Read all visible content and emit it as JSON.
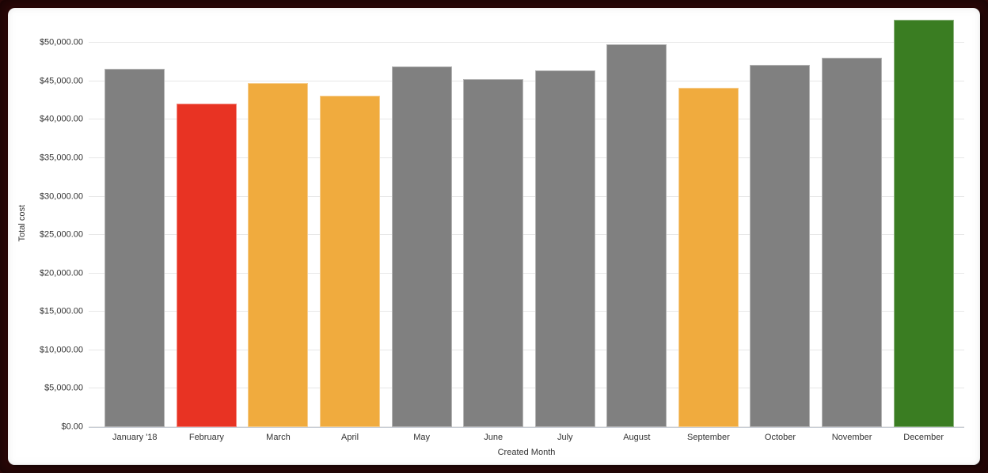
{
  "frame": {
    "border_color": "#2b0707",
    "panel_background": "#ffffff"
  },
  "chart_data": {
    "type": "bar",
    "title": "",
    "xlabel": "Created Month",
    "ylabel": "Total cost",
    "categories": [
      "January '18",
      "February",
      "March",
      "April",
      "May",
      "June",
      "July",
      "August",
      "September",
      "October",
      "November",
      "December"
    ],
    "values": [
      46600,
      42100,
      44800,
      43100,
      46900,
      45300,
      46400,
      49800,
      44100,
      47100,
      48100,
      53000
    ],
    "bar_colors": [
      "#808080",
      "#e83323",
      "#f0ab3e",
      "#f0ab3e",
      "#808080",
      "#808080",
      "#808080",
      "#808080",
      "#f0ab3e",
      "#808080",
      "#808080",
      "#3a7d22"
    ],
    "y_ticks": [
      0,
      5000,
      10000,
      15000,
      20000,
      25000,
      30000,
      35000,
      40000,
      45000,
      50000
    ],
    "y_tick_labels": [
      "$0.00",
      "$5,000.00",
      "$10,000.00",
      "$15,000.00",
      "$20,000.00",
      "$25,000.00",
      "$30,000.00",
      "$35,000.00",
      "$40,000.00",
      "$45,000.00",
      "$50,000.00"
    ],
    "ylim": [
      0,
      53000
    ],
    "grid": true,
    "legend": false,
    "colors": {
      "gridline": "#e7e7e7",
      "axis_line": "#c9ced6",
      "text": "#333333",
      "default_bar": "#808080",
      "highlight_red": "#e83323",
      "highlight_orange": "#f0ab3e",
      "highlight_green": "#3a7d22"
    }
  }
}
